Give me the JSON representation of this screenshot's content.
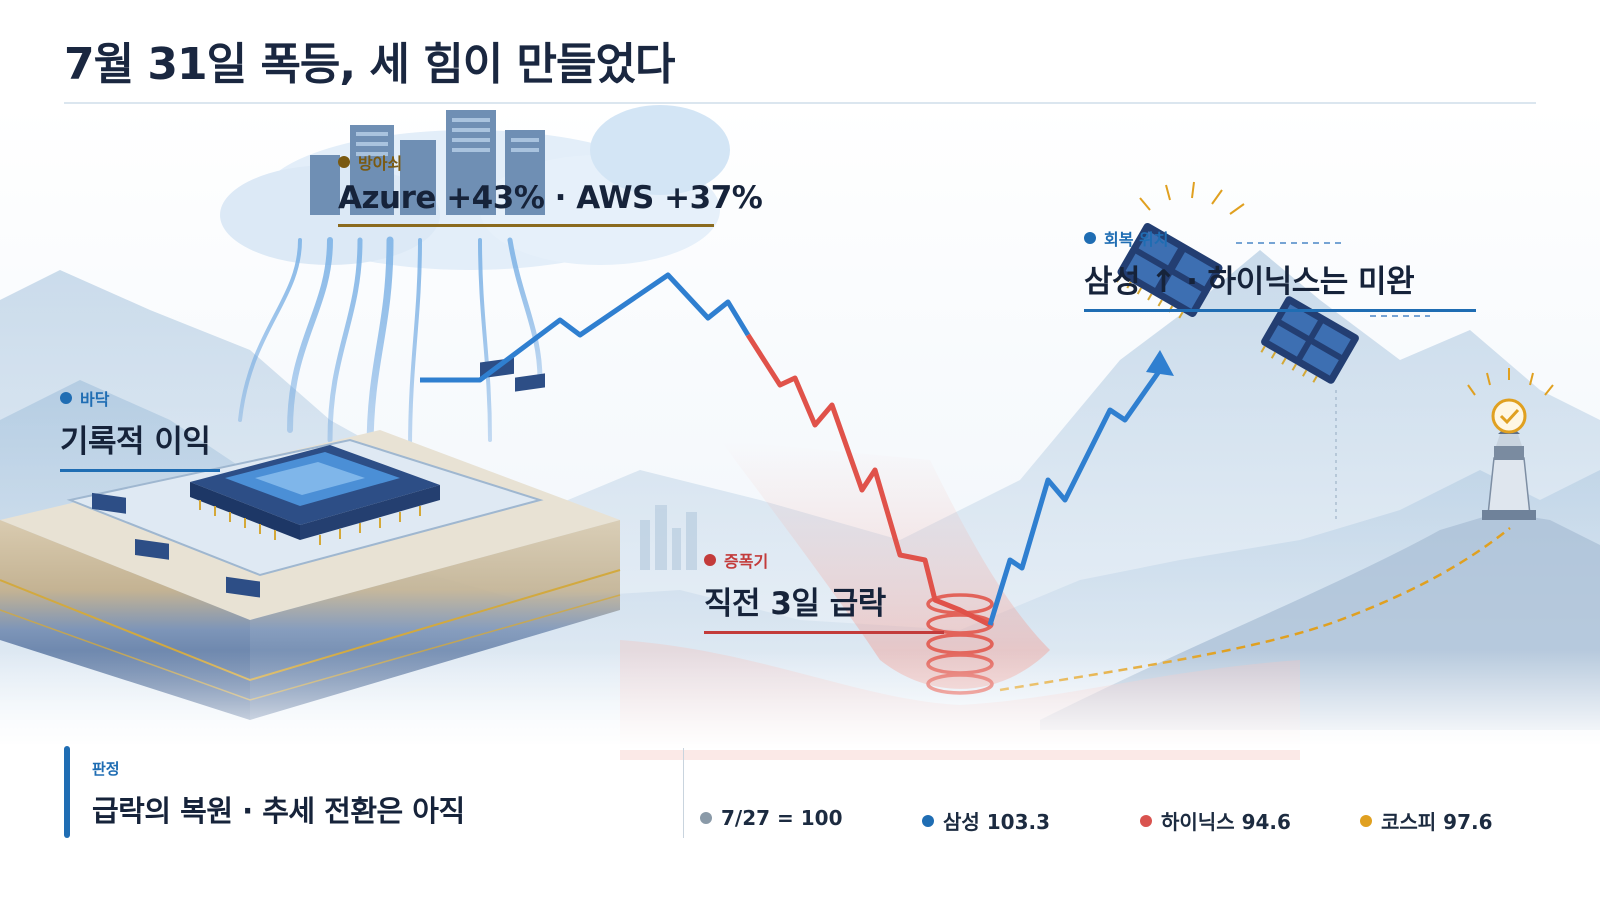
{
  "title": "7월 31일 폭등, 세 힘이 만들었다",
  "callouts": {
    "defense": {
      "tag": "방아쇠",
      "headline": "Azure +43% · AWS +37%",
      "color": "#7a5a12",
      "rule_color": "#8a6a1e"
    },
    "floor": {
      "tag": "바닥",
      "headline": "기록적 이익",
      "color": "#1f6db3",
      "rule_color": "#1f6db3"
    },
    "amplifier": {
      "tag": "증폭기",
      "headline": "직전 3일 급락",
      "color": "#c33b3b",
      "rule_color": "#c33b3b"
    },
    "recovery": {
      "tag": "회복 위치",
      "headline": "삼성 ↑ · 하이닉스는 미완",
      "color": "#1f6db3",
      "rule_color": "#1f6db3"
    }
  },
  "verdict": {
    "label": "판정",
    "text": "급락의 복원 · 추세 전환은 아직"
  },
  "legend": [
    {
      "label": "7/27 = 100",
      "color": "#8a9aa8"
    },
    {
      "label": "삼성 103.3",
      "color": "#1f6db3"
    },
    {
      "label": "하이닉스 94.6",
      "color": "#d9534f"
    },
    {
      "label": "코스피 97.6",
      "color": "#e0a020"
    }
  ],
  "icons": [
    "cloud-servers-icon",
    "chip-board-icon",
    "spring-icon",
    "memory-chip-icon",
    "lighthouse-icon",
    "checkmark-icon",
    "trend-arrow-icon"
  ]
}
